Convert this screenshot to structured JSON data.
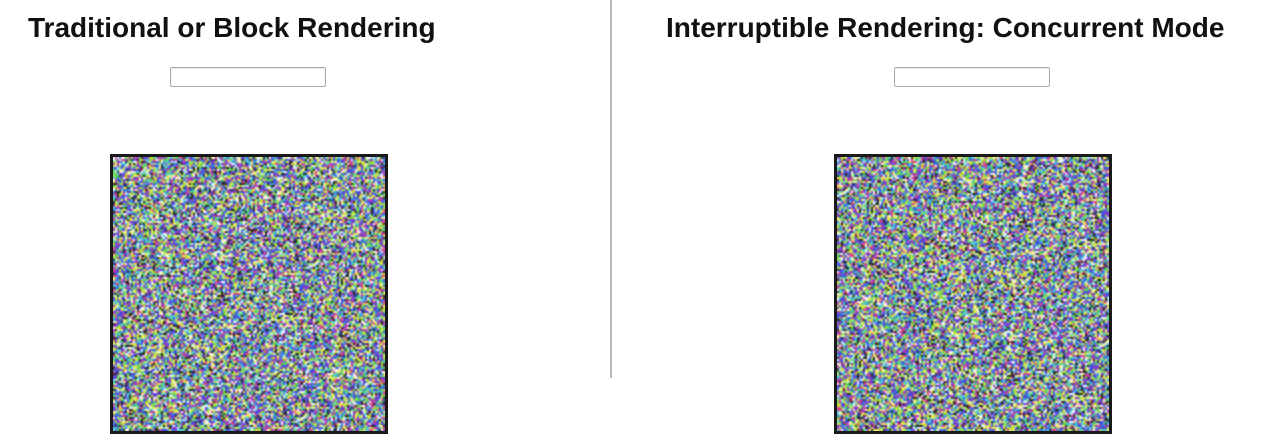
{
  "panels": [
    {
      "title": "Traditional or Block Rendering",
      "input_value": "",
      "input_placeholder": ""
    },
    {
      "title": "Interruptible Rendering: Concurrent Mode",
      "input_value": "",
      "input_placeholder": ""
    }
  ],
  "colors": {
    "divider": "#b8b8b8",
    "box_border": "#1a1a1a",
    "noise_palette": [
      "#e8e860",
      "#5ed45e",
      "#4a4adc",
      "#d24a8c",
      "#50c8d8",
      "#2a2a2a",
      "#f0f0f0",
      "#8c3cc8",
      "#b8d840",
      "#3c7ad8"
    ]
  }
}
